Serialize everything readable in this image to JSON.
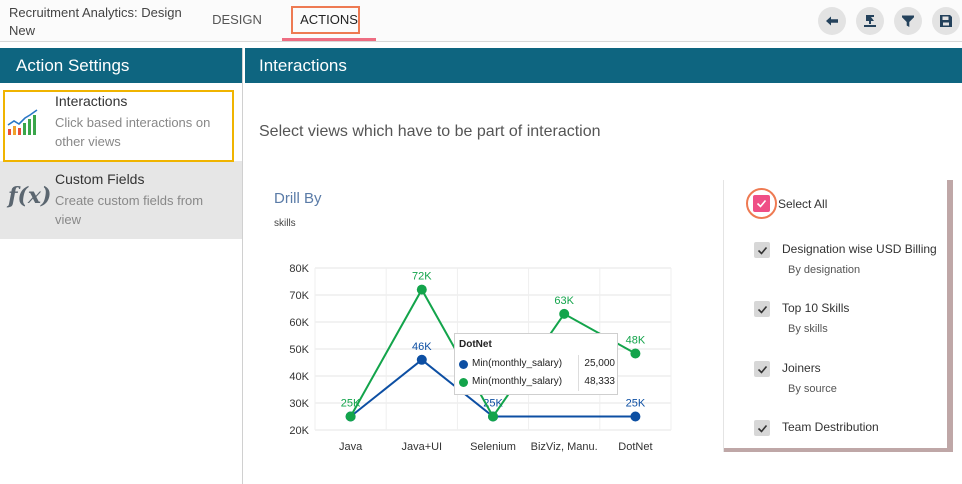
{
  "app": {
    "title": "Recruitment Analytics: Design New"
  },
  "nav": {
    "design": "DESIGN",
    "actions": "ACTIONS"
  },
  "toolbar": {
    "icons": [
      "back-arrow-icon",
      "publish-icon",
      "filter-icon",
      "save-icon"
    ]
  },
  "left_panel": {
    "header": "Action Settings",
    "items": [
      {
        "title": "Interactions",
        "desc": "Click based interactions on other views",
        "icon": "line-chart-icon"
      },
      {
        "title": "Custom Fields",
        "desc": "Create custom fields from view",
        "icon": "fx-icon"
      }
    ]
  },
  "main": {
    "header": "Interactions",
    "instruction": "Select views which have to be part of interaction"
  },
  "chart_card": {
    "title": "Drill By",
    "subtitle": "skills"
  },
  "chart_data": {
    "type": "line",
    "categories": [
      "Java",
      "Java+UI",
      "Selenium",
      "BizViz, Manu.",
      "DotNet"
    ],
    "y_ticks": [
      "80K",
      "70K",
      "60K",
      "50K",
      "40K",
      "30K",
      "20K"
    ],
    "ylim": [
      20000,
      80000
    ],
    "series": [
      {
        "name": "Min(monthly_salary)",
        "color": "#0d4fa3",
        "values": [
          25000,
          46000,
          25000,
          null,
          25000
        ],
        "labels": [
          "",
          "46K",
          "25K",
          "",
          "25K"
        ]
      },
      {
        "name": "Min(monthly_salary)",
        "color": "#13a44b",
        "values": [
          25000,
          72000,
          25000,
          63000,
          48333
        ],
        "labels": [
          "25K",
          "72K",
          "",
          "63K",
          "48K"
        ]
      }
    ],
    "grid": true
  },
  "tooltip": {
    "title": "DotNet",
    "rows": [
      {
        "label": "Min(monthly_salary)",
        "value": "25,000",
        "color": "#0d4fa3"
      },
      {
        "label": "Min(monthly_salary)",
        "value": "48,333",
        "color": "#13a44b"
      }
    ]
  },
  "views": {
    "select_all": "Select All",
    "items": [
      {
        "name": "Designation wise USD Billing",
        "desc": "By designation"
      },
      {
        "name": "Top 10 Skills",
        "desc": "By skills"
      },
      {
        "name": "Joiners",
        "desc": "By source"
      },
      {
        "name": "Team Destribution",
        "desc": ""
      }
    ]
  }
}
